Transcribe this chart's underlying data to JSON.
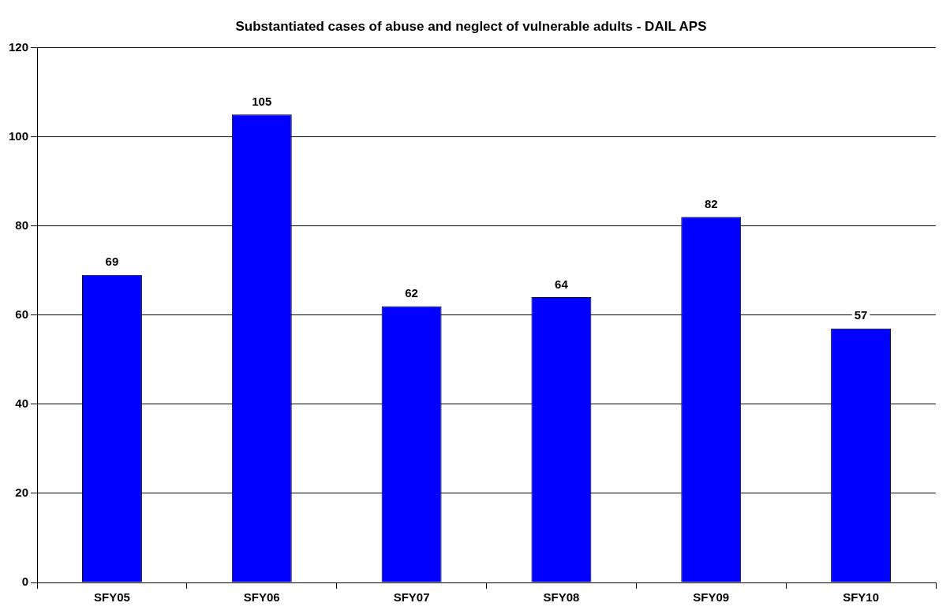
{
  "chart_data": {
    "type": "bar",
    "title": "Substantiated cases of abuse and neglect of vulnerable adults - DAIL APS",
    "categories": [
      "SFY05",
      "SFY06",
      "SFY07",
      "SFY08",
      "SFY09",
      "SFY10"
    ],
    "values": [
      69,
      105,
      62,
      64,
      82,
      57
    ],
    "color": "#0000ff",
    "ylim": [
      0,
      120
    ],
    "yticks": [
      0,
      20,
      40,
      60,
      80,
      100,
      120
    ],
    "grid": "y",
    "data_labels": true
  }
}
